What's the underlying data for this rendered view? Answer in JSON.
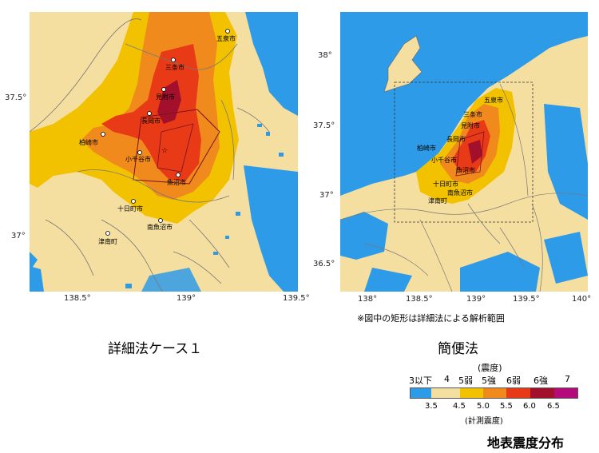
{
  "left_map": {
    "caption": "詳細法ケース１",
    "x_ticks": [
      "138.5°",
      "139°",
      "139.5°"
    ],
    "y_ticks": [
      "37.5°",
      "37°"
    ],
    "cities": [
      "五泉市",
      "三条市",
      "見附市",
      "長岡市",
      "柏崎市",
      "小千谷市",
      "魚沼市",
      "十日町市",
      "南魚沼市",
      "津南町"
    ]
  },
  "right_map": {
    "caption": "簡便法",
    "note": "※図中の矩形は詳細法による解析範囲",
    "x_ticks": [
      "138°",
      "138.5°",
      "139°",
      "139.5°",
      "140°"
    ],
    "y_ticks": [
      "38°",
      "37.5°",
      "37°",
      "36.5°"
    ],
    "cities": [
      "五泉市",
      "三条市",
      "見附市",
      "長岡市",
      "柏崎市",
      "小千谷市",
      "魚沼市",
      "十日町市",
      "南魚沼市",
      "津南町"
    ]
  },
  "legend": {
    "top_label": "(震度)",
    "intensity_labels": [
      "3以下",
      "4",
      "5弱",
      "5強",
      "6弱",
      "6強",
      "7"
    ],
    "boundary_values": [
      "3.5",
      "4.5",
      "5.0",
      "5.5",
      "6.0",
      "6.5"
    ],
    "bottom_label": "(計測震度)",
    "colors": [
      "#2e9be8",
      "#f5dfa0",
      "#f2c200",
      "#f08a1c",
      "#e83a17",
      "#a2102b",
      "#b40a7a"
    ]
  },
  "figure_title": "地表震度分布"
}
